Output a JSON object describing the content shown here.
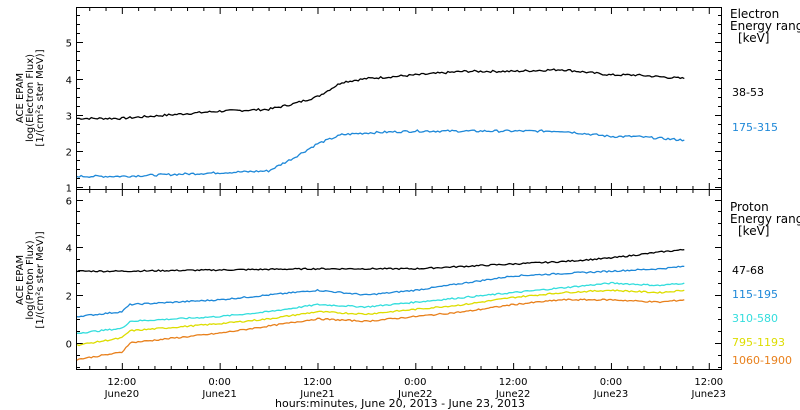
{
  "xlabel": "hours:minutes, June 20, 2013 - June 23, 2013",
  "x_ticks": [
    {
      "time": "12:00",
      "date": "June20"
    },
    {
      "time": "0:00",
      "date": "June21"
    },
    {
      "time": "12:00",
      "date": "June21"
    },
    {
      "time": "0:00",
      "date": "June22"
    },
    {
      "time": "12:00",
      "date": "June22"
    },
    {
      "time": "0:00",
      "date": "June23"
    },
    {
      "time": "12:00",
      "date": "June23"
    }
  ],
  "chart_data": [
    {
      "type": "line",
      "ylabel": [
        "ACE EPAM",
        "log(Electron Flux)",
        "[1/(cm²s ster MeV)]"
      ],
      "ylim": [
        0.95,
        5.95
      ],
      "yticks": [
        1,
        2,
        3,
        4,
        5
      ],
      "xlim": [
        "2013-06-20T06:30",
        "2013-06-23T13:30"
      ],
      "legend_title": [
        "Electron",
        "Energy ranges",
        "[keV]"
      ],
      "series": [
        {
          "name": "38-53",
          "color": "#000000",
          "x_hours": [
            6.5,
            12,
            18,
            24,
            30,
            33,
            36,
            39,
            42,
            48,
            54,
            60,
            66,
            72,
            75,
            78,
            81
          ],
          "values": [
            2.9,
            2.9,
            3.0,
            3.1,
            3.15,
            3.3,
            3.5,
            3.9,
            4.0,
            4.1,
            4.2,
            4.2,
            4.25,
            4.1,
            4.1,
            4.05,
            4.0
          ]
        },
        {
          "name": "175-315",
          "color": "#1e88d8",
          "x_hours": [
            6.5,
            12,
            18,
            24,
            30,
            33,
            36,
            39,
            42,
            48,
            54,
            60,
            66,
            72,
            75,
            78,
            81
          ],
          "values": [
            1.3,
            1.3,
            1.35,
            1.4,
            1.45,
            1.8,
            2.2,
            2.45,
            2.5,
            2.55,
            2.55,
            2.55,
            2.55,
            2.4,
            2.4,
            2.35,
            2.3
          ]
        }
      ]
    },
    {
      "type": "line",
      "ylabel": [
        "ACE EPAM",
        "log(Proton Flux)",
        "[1/(cm²s ster MeV)]"
      ],
      "ylim": [
        -1.1,
        6.4
      ],
      "yticks": [
        0,
        2,
        4,
        6
      ],
      "xlim": [
        "2013-06-20T06:30",
        "2013-06-23T13:30"
      ],
      "legend_title": [
        "Proton",
        "Energy ranges",
        "[keV]"
      ],
      "series": [
        {
          "name": "47-68",
          "color": "#000000",
          "x_hours": [
            6.5,
            12,
            24,
            36,
            48,
            54,
            60,
            66,
            72,
            78,
            81
          ],
          "values": [
            3.0,
            3.0,
            3.05,
            3.1,
            3.1,
            3.2,
            3.3,
            3.4,
            3.55,
            3.8,
            3.9
          ]
        },
        {
          "name": "115-195",
          "color": "#1e88d8",
          "x_hours": [
            6.5,
            12,
            13,
            24,
            30,
            36,
            42,
            48,
            54,
            60,
            66,
            72,
            78,
            81
          ],
          "values": [
            1.1,
            1.3,
            1.6,
            1.8,
            2.0,
            2.2,
            2.0,
            2.2,
            2.5,
            2.8,
            2.9,
            3.0,
            3.1,
            3.2
          ]
        },
        {
          "name": "310-580",
          "color": "#33dddd",
          "x_hours": [
            6.5,
            12,
            13,
            24,
            30,
            36,
            42,
            48,
            54,
            60,
            66,
            72,
            78,
            81
          ],
          "values": [
            0.4,
            0.6,
            0.9,
            1.1,
            1.3,
            1.6,
            1.5,
            1.7,
            1.9,
            2.1,
            2.3,
            2.5,
            2.4,
            2.5
          ]
        },
        {
          "name": "795-1193",
          "color": "#dddd00",
          "x_hours": [
            6.5,
            12,
            13,
            24,
            30,
            36,
            42,
            48,
            54,
            60,
            66,
            72,
            78,
            81
          ],
          "values": [
            -0.1,
            0.2,
            0.5,
            0.8,
            1.0,
            1.3,
            1.2,
            1.4,
            1.6,
            1.9,
            2.1,
            2.2,
            2.1,
            2.2
          ]
        },
        {
          "name": "1060-1900",
          "color": "#e8801c",
          "x_hours": [
            6.5,
            12,
            13,
            24,
            30,
            36,
            42,
            48,
            54,
            60,
            66,
            72,
            78,
            81
          ],
          "values": [
            -0.7,
            -0.4,
            0.0,
            0.4,
            0.7,
            1.0,
            0.9,
            1.1,
            1.3,
            1.6,
            1.8,
            1.8,
            1.7,
            1.8
          ]
        }
      ]
    }
  ]
}
